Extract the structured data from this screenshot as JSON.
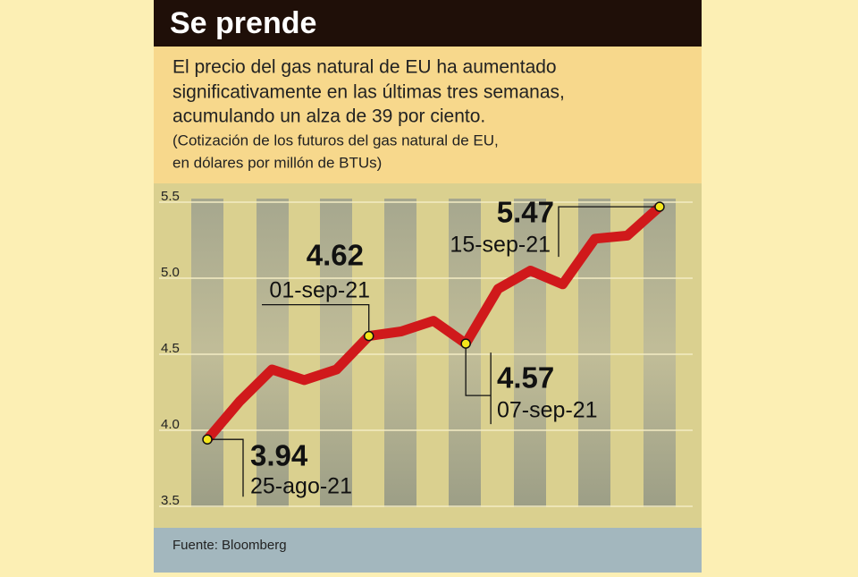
{
  "header": {
    "title": "Se prende",
    "subtitle": [
      "El precio del gas natural de EU ha aumentado",
      "significativamente en las últimas tres semanas,",
      "acumulando un alza de 39 por ciento."
    ],
    "note": [
      "(Cotización de los futuros del gas natural de EU,",
      "en dólares por millón de BTUs)"
    ]
  },
  "chart_data": {
    "type": "line",
    "categories": [
      "25-ago-21",
      null,
      null,
      null,
      null,
      "01-sep-21",
      null,
      null,
      "07-sep-21",
      null,
      null,
      null,
      null,
      null,
      "15-sep-21"
    ],
    "series": [
      {
        "name": "Gas natural",
        "color": "#d0191b",
        "values": [
          3.94,
          4.19,
          4.4,
          4.33,
          4.4,
          4.62,
          4.65,
          4.72,
          4.57,
          4.93,
          5.05,
          4.96,
          5.26,
          5.28,
          5.47
        ]
      }
    ],
    "ylim": [
      3.5,
      5.5
    ],
    "yticks": [
      3.5,
      {
        "value": 4,
        "label": "4.0"
      },
      4.5,
      {
        "value": 5,
        "label": "5.0"
      },
      5.5
    ],
    "grid": true
  },
  "footer": {
    "source": "Fuente: Bloomberg"
  }
}
